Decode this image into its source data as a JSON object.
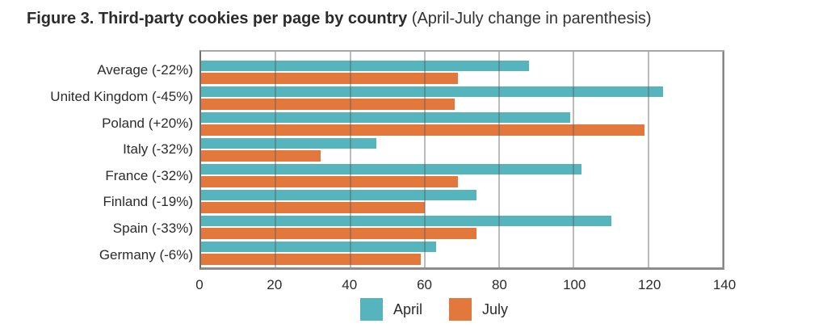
{
  "title": {
    "bold": "Figure 3. Third-party cookies per page by country",
    "light": "(April-July change in parenthesis)"
  },
  "chart_data": {
    "type": "bar",
    "orientation": "horizontal",
    "title": "Figure 3. Third-party cookies per page by country (April-July change in parenthesis)",
    "categories": [
      "Average (-22%)",
      "United Kingdom (-45%)",
      "Poland (+20%)",
      "Italy (-32%)",
      "France (-32%)",
      "Finland (-19%)",
      "Spain (-33%)",
      "Germany (-6%)"
    ],
    "series": [
      {
        "name": "April",
        "color": "#56b4bc",
        "values": [
          88,
          124,
          99,
          47,
          102,
          74,
          110,
          63
        ]
      },
      {
        "name": "July",
        "color": "#e2783c",
        "values": [
          69,
          68,
          119,
          32,
          69,
          60,
          74,
          59
        ]
      }
    ],
    "xlabel": "",
    "ylabel": "",
    "xlim": [
      0,
      140
    ],
    "x_ticks": [
      0,
      20,
      40,
      60,
      80,
      100,
      120,
      140
    ],
    "grid": true,
    "legend_position": "bottom"
  },
  "colors": {
    "april": "#56b4bc",
    "july": "#e2783c",
    "grid": "#b2b2b2",
    "axis": "#6f6f6f",
    "text": "#2b2b2b"
  }
}
